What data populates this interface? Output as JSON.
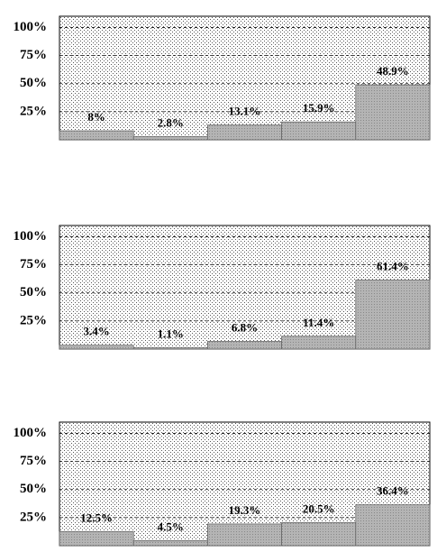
{
  "chart_data": [
    {
      "type": "bar",
      "values": [
        8,
        2.8,
        13.1,
        15.9,
        48.9
      ],
      "value_labels": [
        "8%",
        "2.8%",
        "13.1%",
        "15.9%",
        "48.9%"
      ],
      "color": "#b4b4b4",
      "ylim": [
        0,
        110
      ],
      "yticks": [
        {
          "value": 25,
          "label": "25%"
        },
        {
          "value": 50,
          "label": "50%"
        },
        {
          "value": 75,
          "label": "75%"
        },
        {
          "value": 100,
          "label": "100%"
        }
      ],
      "grid": true
    },
    {
      "type": "bar",
      "values": [
        3.4,
        1.1,
        6.8,
        11.4,
        61.4
      ],
      "value_labels": [
        "3.4%",
        "1.1%",
        "6.8%",
        "11.4%",
        "61.4%"
      ],
      "color": "#b4b4b4",
      "ylim": [
        0,
        110
      ],
      "yticks": [
        {
          "value": 25,
          "label": "25%"
        },
        {
          "value": 50,
          "label": "50%"
        },
        {
          "value": 75,
          "label": "75%"
        },
        {
          "value": 100,
          "label": "100%"
        }
      ],
      "grid": true
    },
    {
      "type": "bar",
      "values": [
        12.5,
        4.5,
        19.3,
        20.5,
        36.4
      ],
      "value_labels": [
        "12.5%",
        "4.5%",
        "19.3%",
        "20.5%",
        "36.4%"
      ],
      "color": "#b4b4b4",
      "ylim": [
        0,
        110
      ],
      "yticks": [
        {
          "value": 25,
          "label": "25%"
        },
        {
          "value": 50,
          "label": "50%"
        },
        {
          "value": 75,
          "label": "75%"
        },
        {
          "value": 100,
          "label": "100%"
        }
      ],
      "grid": true
    }
  ]
}
